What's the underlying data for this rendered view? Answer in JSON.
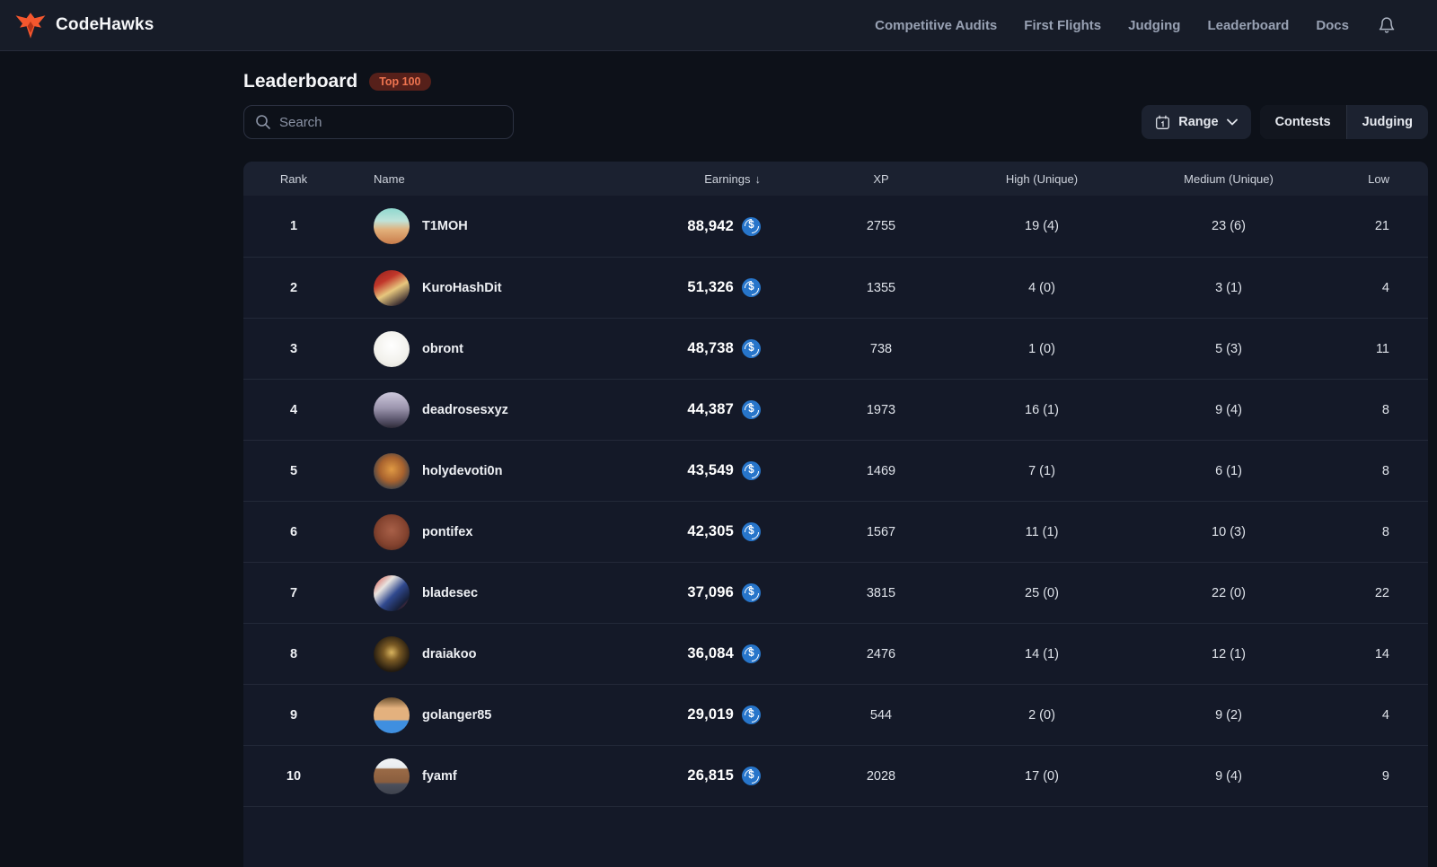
{
  "brand": {
    "name": "CodeHawks",
    "logo_color": "#f4572e"
  },
  "nav": {
    "items": [
      "Competitive Audits",
      "First Flights",
      "Judging",
      "Leaderboard",
      "Docs"
    ]
  },
  "page": {
    "title": "Leaderboard",
    "badge": "Top 100"
  },
  "search": {
    "placeholder": "Search"
  },
  "controls": {
    "range_label": "Range",
    "tabs": [
      {
        "label": "Contests",
        "active": true
      },
      {
        "label": "Judging",
        "active": false
      }
    ]
  },
  "colors": {
    "page_bg": "#0d1119",
    "nav_bg": "#171c28",
    "row_bg": "#141928",
    "header_bg": "#1b2130",
    "badge_bg": "#56201a",
    "badge_text": "#ee7450",
    "coin_blue": "#2775ca",
    "accent_orange": "#f4572e"
  },
  "table": {
    "columns": [
      "Rank",
      "Name",
      "Earnings",
      "XP",
      "High (Unique)",
      "Medium (Unique)",
      "Low"
    ],
    "sort": {
      "column": "Earnings",
      "direction": "desc"
    },
    "rows": [
      {
        "rank": "1",
        "name": "T1MOH",
        "earnings": "88,942",
        "xp": "2755",
        "high": "19 (4)",
        "medium": "23 (6)",
        "low": "21",
        "avatar": "linear-gradient(180deg,#8fd8cf 0%,#bfe3d9 35%,#e2b07a 60%,#c97c4a 100%)"
      },
      {
        "rank": "2",
        "name": "KuroHashDit",
        "earnings": "51,326",
        "xp": "1355",
        "high": "4 (0)",
        "medium": "3 (1)",
        "low": "4",
        "avatar": "linear-gradient(150deg,#8e1f1b 0%,#c1372b 30%,#e7c77e 55%,#403233 85%)"
      },
      {
        "rank": "3",
        "name": "obront",
        "earnings": "48,738",
        "xp": "738",
        "high": "1 (0)",
        "medium": "5 (3)",
        "low": "11",
        "avatar": "radial-gradient(circle at 50% 40%,#ffffff 0%,#f2f1ec 60%,#d8d6ce 100%)"
      },
      {
        "rank": "4",
        "name": "deadrosesxyz",
        "earnings": "44,387",
        "xp": "1973",
        "high": "16 (1)",
        "medium": "9 (4)",
        "low": "8",
        "avatar": "linear-gradient(180deg,#cdc8dc 0%,#9b94ad 45%,#555066 80%,#2e2b38 100%)"
      },
      {
        "rank": "5",
        "name": "holydevoti0n",
        "earnings": "43,549",
        "xp": "1469",
        "high": "7 (1)",
        "medium": "6 (1)",
        "low": "8",
        "avatar": "radial-gradient(circle at 50% 45%,#e09a44 0%,#a8622e 45%,#33404e 80%,#1d2630 100%)"
      },
      {
        "rank": "6",
        "name": "pontifex",
        "earnings": "42,305",
        "xp": "1567",
        "high": "11 (1)",
        "medium": "10 (3)",
        "low": "8",
        "avatar": "radial-gradient(circle at 50% 45%,#a86048 0%,#84432f 55%,#4a241a 100%)"
      },
      {
        "rank": "7",
        "name": "bladesec",
        "earnings": "37,096",
        "xp": "3815",
        "high": "25 (0)",
        "medium": "22 (0)",
        "low": "22",
        "avatar": "linear-gradient(135deg,#d6493f 0%,#e8e4e0 30%,#30498f 55%,#16203a 80%,#c23b37 100%)"
      },
      {
        "rank": "8",
        "name": "draiakoo",
        "earnings": "36,084",
        "xp": "2476",
        "high": "14 (1)",
        "medium": "12 (1)",
        "low": "14",
        "avatar": "radial-gradient(circle at 50% 45%,#d8b35e 0%,#7a5a24 30%,#241b10 70%,#141009 100%)"
      },
      {
        "rank": "9",
        "name": "golanger85",
        "earnings": "29,019",
        "xp": "544",
        "high": "2 (0)",
        "medium": "9 (2)",
        "low": "4",
        "avatar": "linear-gradient(180deg,#6b4f2e 0%,#e3b17e 30%,#e3b17e 62%,#3f8fe0 66%,#3f8fe0 100%)"
      },
      {
        "rank": "10",
        "name": "fyamf",
        "earnings": "26,815",
        "xp": "2028",
        "high": "17 (0)",
        "medium": "9 (4)",
        "low": "9",
        "avatar": "linear-gradient(180deg,#f2f4f6 0%,#e8ecef 26%,#9a6b47 30%,#8a5d3e 66%,#4c505c 72%,#3e424d 100%)"
      }
    ]
  }
}
